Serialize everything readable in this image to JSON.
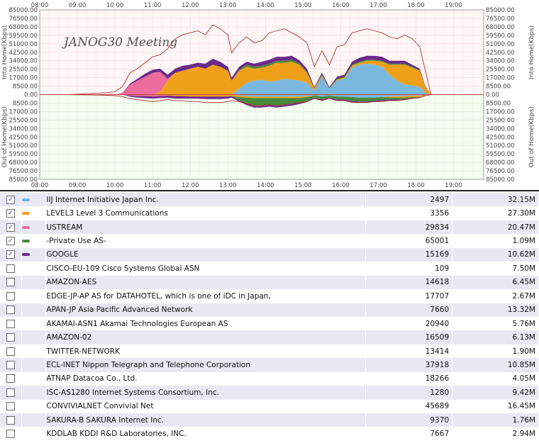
{
  "chart_data": {
    "type": "area",
    "watermark": "JANOG30 Meeting",
    "ylabel_top": "Into Home(Kbps)",
    "ylabel_bottom": "Out of Home(Kbps)",
    "x_ticks": [
      "08:00",
      "09:00",
      "10:00",
      "11:00",
      "12:00",
      "13:00",
      "14:00",
      "15:00",
      "16:00",
      "17:00",
      "18:00",
      "19:00"
    ],
    "y_ticks": [
      "85000.00",
      "76500.00",
      "68000.00",
      "59500.00",
      "51000.00",
      "42500.00",
      "34000.00",
      "25500.00",
      "17000.00",
      "8500.00",
      "0.00",
      "8500.00",
      "17000.00",
      "25500.00",
      "34000.00",
      "42500.00",
      "51000.00",
      "59500.00",
      "68000.00",
      "76500.00",
      "85000.00"
    ],
    "ylim": [
      -85000,
      85000
    ],
    "xlim_hours": [
      8,
      19.8
    ],
    "x_hours": [
      8.8,
      9.0,
      9.3,
      9.6,
      9.8,
      10.0,
      10.2,
      10.4,
      10.6,
      10.8,
      11.0,
      11.2,
      11.4,
      11.6,
      11.8,
      12.0,
      12.2,
      12.4,
      12.6,
      12.8,
      13.0,
      13.1,
      13.3,
      13.5,
      13.7,
      13.9,
      14.1,
      14.3,
      14.5,
      14.7,
      14.9,
      15.1,
      15.3,
      15.5,
      15.7,
      15.9,
      16.1,
      16.3,
      16.5,
      16.7,
      16.9,
      17.1,
      17.3,
      17.5,
      17.7,
      17.9,
      18.1,
      18.25,
      18.4,
      18.6
    ],
    "series": [
      {
        "name": "IIJ Internet Initiative Japan Inc.",
        "color": "#7ab8e0",
        "in": [
          0,
          0,
          0,
          0,
          0,
          0,
          0,
          0,
          0,
          0,
          0,
          0,
          0,
          0,
          0,
          0,
          0,
          0,
          0,
          0,
          0,
          0,
          6000,
          12000,
          14000,
          15000,
          13000,
          14000,
          16000,
          15000,
          14000,
          12000,
          4000,
          18000,
          6000,
          14000,
          16000,
          27000,
          30000,
          31000,
          30000,
          28000,
          20000,
          14000,
          10000,
          9000,
          8000,
          2000,
          0,
          0
        ],
        "out": [
          0,
          0,
          0,
          0,
          0,
          0,
          0,
          0,
          0,
          0,
          0,
          0,
          0,
          0,
          0,
          0,
          0,
          0,
          0,
          0,
          0,
          0,
          -1000,
          -1500,
          -2000,
          -2000,
          -2000,
          -2000,
          -2000,
          -2000,
          -2000,
          -1500,
          -1000,
          -2000,
          -1000,
          -2000,
          -2000,
          -2500,
          -3000,
          -3000,
          -3000,
          -2500,
          -2000,
          -1500,
          -1500,
          -1000,
          -1000,
          0,
          0,
          0
        ]
      },
      {
        "name": "LEVEL3 Level 3 Communications",
        "color": "#f0a018",
        "in": [
          0,
          0,
          0,
          0,
          0,
          0,
          0,
          0,
          0,
          0,
          0,
          3000,
          14000,
          22000,
          24000,
          26000,
          28000,
          26000,
          30000,
          28000,
          24000,
          14000,
          18000,
          16000,
          12000,
          12000,
          16000,
          18000,
          16000,
          18000,
          16000,
          10000,
          2000,
          1000,
          0,
          1000,
          1000,
          2000,
          2000,
          3000,
          4000,
          5000,
          10000,
          16000,
          20000,
          18000,
          16000,
          6000,
          0,
          0
        ],
        "out": [
          0,
          0,
          0,
          0,
          0,
          0,
          0,
          0,
          0,
          0,
          0,
          0,
          -1000,
          -1500,
          -1500,
          -2000,
          -2000,
          -2000,
          -2000,
          -2000,
          -2000,
          -1500,
          -1500,
          -1500,
          -1500,
          -1500,
          -1500,
          -1500,
          -1500,
          -1500,
          -1500,
          -1000,
          0,
          0,
          0,
          0,
          0,
          0,
          0,
          0,
          0,
          0,
          -1000,
          -1500,
          -1500,
          -1500,
          -1500,
          -500,
          0,
          0
        ]
      },
      {
        "name": "USTREAM",
        "color": "#ec6c9c",
        "in": [
          0,
          0,
          0,
          0,
          0,
          0,
          2000,
          10000,
          14000,
          18000,
          22000,
          20000,
          2000,
          0,
          0,
          0,
          0,
          0,
          0,
          0,
          0,
          0,
          0,
          0,
          0,
          0,
          0,
          0,
          0,
          0,
          0,
          0,
          0,
          0,
          0,
          0,
          0,
          0,
          0,
          0,
          0,
          0,
          0,
          0,
          0,
          0,
          0,
          0,
          0,
          0
        ],
        "out": [
          0,
          0,
          0,
          0,
          0,
          0,
          0,
          -1000,
          -1500,
          -1500,
          -2000,
          -1500,
          0,
          0,
          0,
          0,
          0,
          0,
          0,
          0,
          0,
          0,
          0,
          0,
          0,
          0,
          0,
          0,
          0,
          0,
          0,
          0,
          0,
          0,
          0,
          0,
          0,
          0,
          0,
          0,
          0,
          0,
          0,
          0,
          0,
          0,
          0,
          0,
          0,
          0
        ]
      },
      {
        "name": "-Private Use AS-",
        "color": "#4a8a3a",
        "in": [
          0,
          0,
          0,
          0,
          0,
          0,
          0,
          0,
          0,
          0,
          0,
          0,
          0,
          0,
          0,
          0,
          0,
          0,
          0,
          0,
          0,
          0,
          1000,
          2000,
          2000,
          2000,
          2000,
          2000,
          2000,
          2000,
          1500,
          1000,
          500,
          1000,
          500,
          1000,
          1000,
          1000,
          1000,
          1000,
          1000,
          1000,
          1000,
          1000,
          1000,
          1000,
          500,
          0,
          0,
          0
        ],
        "out": [
          0,
          0,
          0,
          0,
          0,
          0,
          0,
          0,
          0,
          0,
          0,
          0,
          0,
          0,
          0,
          0,
          0,
          0,
          0,
          0,
          0,
          0,
          -3000,
          -6000,
          -8000,
          -8000,
          -7000,
          -8000,
          -7000,
          -6000,
          -5000,
          -4000,
          -2000,
          -3000,
          -2000,
          -3000,
          -3000,
          -4000,
          -4000,
          -4000,
          -3000,
          -3000,
          -2000,
          -2000,
          -1500,
          -1000,
          -500,
          0,
          0,
          0
        ]
      },
      {
        "name": "GOOGLE",
        "color": "#6a2a8a",
        "in": [
          0,
          0,
          0,
          0,
          0,
          0,
          0,
          1000,
          2000,
          3000,
          3000,
          3000,
          4000,
          4000,
          5000,
          4000,
          4000,
          5000,
          6000,
          5000,
          4000,
          3000,
          3000,
          3000,
          3000,
          4000,
          4000,
          4000,
          4000,
          4000,
          3000,
          3000,
          1000,
          2000,
          1000,
          2000,
          2000,
          3000,
          4000,
          4000,
          4000,
          4000,
          3000,
          3000,
          3000,
          2000,
          1500,
          500,
          0,
          0
        ],
        "out": [
          0,
          0,
          0,
          0,
          0,
          0,
          0,
          -1000,
          -1500,
          -2000,
          -2000,
          -2000,
          -2000,
          -2500,
          -2500,
          -2000,
          -2000,
          -2500,
          -2500,
          -2500,
          -2000,
          -1500,
          -1500,
          -1500,
          -1500,
          -1500,
          -1500,
          -1500,
          -1500,
          -1500,
          -1000,
          -1000,
          -500,
          -1000,
          -500,
          -1000,
          -1000,
          -1000,
          -1000,
          -1000,
          -1000,
          -1000,
          -1000,
          -1000,
          -1000,
          -500,
          -500,
          0,
          0,
          0
        ]
      }
    ],
    "total_in_line": [
      0,
      500,
      1000,
      1500,
      2000,
      3000,
      8000,
      22000,
      26000,
      32000,
      38000,
      40000,
      46000,
      56000,
      60000,
      62000,
      64000,
      60000,
      70000,
      66000,
      60000,
      42000,
      52000,
      58000,
      52000,
      54000,
      62000,
      64000,
      66000,
      62000,
      58000,
      52000,
      28000,
      44000,
      30000,
      48000,
      50000,
      62000,
      64000,
      66000,
      64000,
      62000,
      58000,
      56000,
      60000,
      56000,
      48000,
      24000,
      0,
      0
    ],
    "total_out_line": [
      0,
      -200,
      -300,
      -500,
      -800,
      -1000,
      -2000,
      -4000,
      -5000,
      -6000,
      -7000,
      -6000,
      -5000,
      -6000,
      -6000,
      -7000,
      -7000,
      -8000,
      -8000,
      -8000,
      -7000,
      -6000,
      -7000,
      -9000,
      -11000,
      -11000,
      -10000,
      -11000,
      -10000,
      -9000,
      -8000,
      -7000,
      -4000,
      -6000,
      -4000,
      -6000,
      -6000,
      -8000,
      -8000,
      -8000,
      -7000,
      -7000,
      -6000,
      -6000,
      -5000,
      -4000,
      -3000,
      -1000,
      0,
      0
    ]
  },
  "table": {
    "rows": [
      {
        "checked": true,
        "color": "#6ab4e8",
        "name": "IIJ Internet Initiative Japan Inc.",
        "asn": "2497",
        "traffic": "32.15M"
      },
      {
        "checked": true,
        "color": "#f0a018",
        "name": "LEVEL3 Level 3 Communications",
        "asn": "3356",
        "traffic": "27.30M"
      },
      {
        "checked": true,
        "color": "#ec6c9c",
        "name": "USTREAM",
        "asn": "29834",
        "traffic": "20.47M"
      },
      {
        "checked": true,
        "color": "#4a8a3a",
        "name": "-Private Use AS-",
        "asn": "65001",
        "traffic": "1.09M"
      },
      {
        "checked": true,
        "color": "#6a2a8a",
        "name": "GOOGLE",
        "asn": "15169",
        "traffic": "10.62M"
      },
      {
        "checked": false,
        "color": "",
        "name": "CISCO-EU-109 Cisco Systems Global ASN",
        "asn": "109",
        "traffic": "7.50M"
      },
      {
        "checked": false,
        "color": "",
        "name": "AMAZON-AES",
        "asn": "14618",
        "traffic": "6.45M"
      },
      {
        "checked": false,
        "color": "",
        "name": "EDGE-JP-AP AS for DATAHOTEL, which is one of iDC in Japan,",
        "asn": "17707",
        "traffic": "2.67M"
      },
      {
        "checked": false,
        "color": "",
        "name": "APAN-JP Asia Pacific Advanced Network",
        "asn": "7660",
        "traffic": "13.32M"
      },
      {
        "checked": false,
        "color": "",
        "name": "AKAMAI-ASN1 Akamai Technologies European AS",
        "asn": "20940",
        "traffic": "5.76M"
      },
      {
        "checked": false,
        "color": "",
        "name": "AMAZON-02",
        "asn": "16509",
        "traffic": "6.13M"
      },
      {
        "checked": false,
        "color": "",
        "name": "TWITTER-NETWORK",
        "asn": "13414",
        "traffic": "1.90M"
      },
      {
        "checked": false,
        "color": "",
        "name": "ECL-INET Nippon Telegraph and Telephone Corporation",
        "asn": "37918",
        "traffic": "10.85M"
      },
      {
        "checked": false,
        "color": "",
        "name": "ATNAP Datacoa Co., Ltd.",
        "asn": "18266",
        "traffic": "4.05M"
      },
      {
        "checked": false,
        "color": "",
        "name": "ISC-AS1280 Internet Systems Consortium, Inc.",
        "asn": "1280",
        "traffic": "9.42M"
      },
      {
        "checked": false,
        "color": "",
        "name": "CONVIVIALNET Convivial Net",
        "asn": "45689",
        "traffic": "16.45M"
      },
      {
        "checked": false,
        "color": "",
        "name": "SAKURA-B SAKURA Internet Inc.",
        "asn": "9370",
        "traffic": "1.76M"
      },
      {
        "checked": false,
        "color": "",
        "name": "KDDLAB KDDI R&D Laboratories, INC.",
        "asn": "7667",
        "traffic": "2.94M"
      }
    ]
  }
}
